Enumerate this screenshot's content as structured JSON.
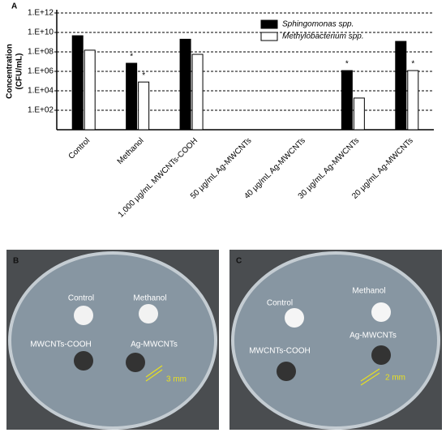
{
  "chart_data": {
    "type": "bar",
    "panel": "A",
    "y_label_lines": [
      "Concentration",
      "(CFU/mL)"
    ],
    "categories": [
      "Control",
      "Methanol",
      "1,000 μg/mL MWCNTs-COOH",
      "50 μg/mL Ag-MWCNTs",
      "40 μg/mL Ag-MWCNTs",
      "30 μg/mL Ag-MWCNTs",
      "20 μg/mL Ag-MWCNTs"
    ],
    "series": [
      {
        "name": "Sphingomonas spp.",
        "color": "#000000",
        "values": [
          4600000000,
          6800000,
          2000000000,
          null,
          null,
          1200000,
          1200000000
        ]
      },
      {
        "name": "Methylobacterium spp.",
        "color": "#ffffff",
        "values": [
          150000000,
          80000,
          56000000,
          null,
          null,
          1800,
          1200000
        ]
      }
    ],
    "ylim": [
      1,
      1000000000000
    ],
    "log_y": true,
    "yticks": [
      {
        "value": 100,
        "label": "1.E+02"
      },
      {
        "value": 10000,
        "label": "1.E+04"
      },
      {
        "value": 1000000,
        "label": "1.E+06"
      },
      {
        "value": 100000000,
        "label": "1.E+08"
      },
      {
        "value": 10000000000,
        "label": "1.E+10"
      },
      {
        "value": 1000000000000,
        "label": "1.E+12"
      }
    ],
    "grid": true,
    "legend": "top-right",
    "annotations": [
      {
        "text": "*",
        "series": 0,
        "category": 1
      },
      {
        "text": "*",
        "series": 1,
        "category": 1
      },
      {
        "text": "*",
        "series": 0,
        "category": 5
      },
      {
        "text": "*",
        "series": 1,
        "category": 6
      }
    ]
  },
  "panels": [
    {
      "label": "B",
      "labels": [
        "Control",
        "Methanol",
        "MWCNTs-COOH",
        "Ag-MWCNTs"
      ],
      "scale": "3 mm"
    },
    {
      "label": "C",
      "labels": [
        "Control",
        "Methanol",
        "MWCNTs-COOH",
        "Ag-MWCNTs"
      ],
      "scale": "2 mm"
    }
  ]
}
